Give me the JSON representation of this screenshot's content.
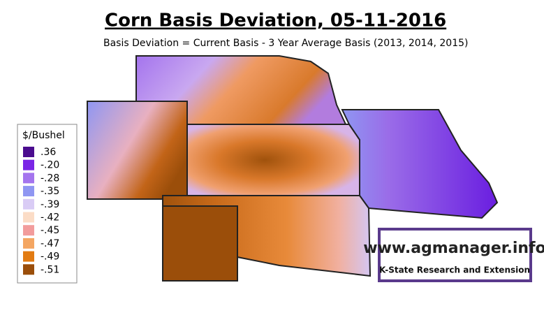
{
  "header": {
    "title": "Corn Basis Deviation, 05-11-2016",
    "subtitle": "Basis Deviation = Current Basis - 3 Year Average Basis (2013, 2014, 2015)"
  },
  "legend": {
    "title": "$/Bushel",
    "items": [
      {
        "label": ".36",
        "color": "#4b0c8f"
      },
      {
        "label": "-.20",
        "color": "#7a26e6"
      },
      {
        "label": "-.28",
        "color": "#a474ee"
      },
      {
        "label": "-.35",
        "color": "#8f96f2"
      },
      {
        "label": "-.39",
        "color": "#d9ccf5"
      },
      {
        "label": "-.42",
        "color": "#fbdcc6"
      },
      {
        "label": "-.45",
        "color": "#f29c9c"
      },
      {
        "label": "-.47",
        "color": "#f4a662"
      },
      {
        "label": "-.49",
        "color": "#e27b12"
      },
      {
        "label": "-.51",
        "color": "#9b4e0a"
      }
    ]
  },
  "logo": {
    "site": "www.agmanager.info",
    "org": "K-State Research and Extension"
  }
}
